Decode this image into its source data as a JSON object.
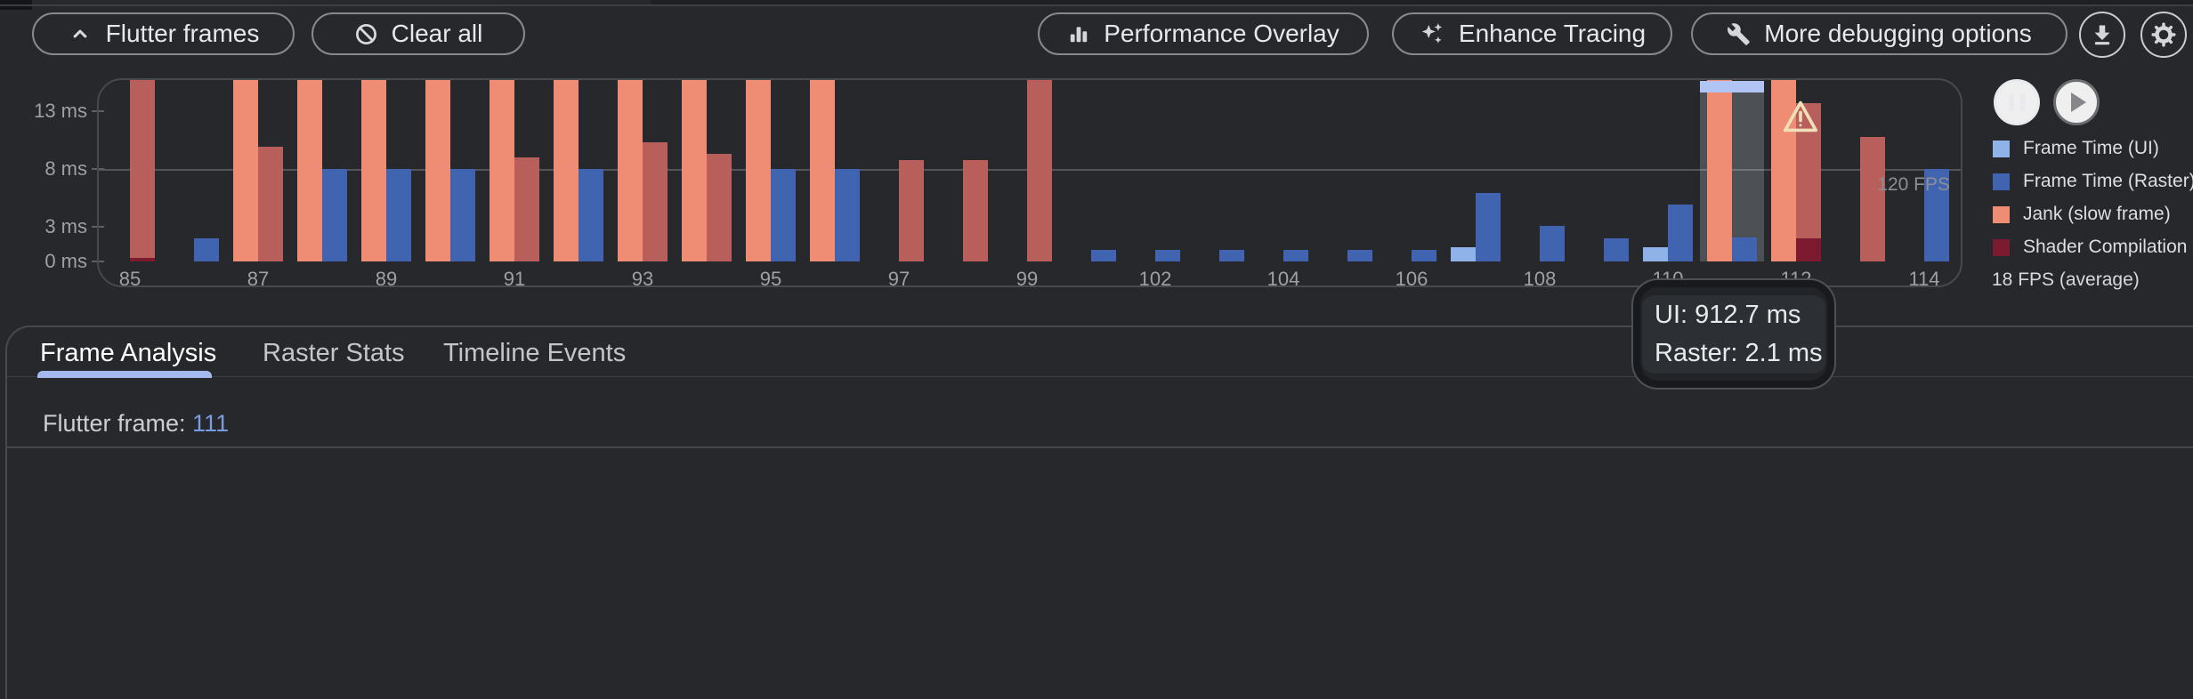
{
  "toolbar": {
    "flutter_frames_label": "Flutter frames",
    "clear_all_label": "Clear all",
    "performance_overlay_label": "Performance Overlay",
    "enhance_tracing_label": "Enhance Tracing",
    "more_debugging_label": "More debugging options"
  },
  "chart_data": {
    "type": "bar",
    "ylabel_ticks": [
      "0 ms",
      "3 ms",
      "8 ms",
      "13 ms"
    ],
    "y_tick_ms": [
      0,
      3,
      8,
      13
    ],
    "gridline_ms": 8,
    "fps_gridline_label": "120 FPS",
    "average_fps_label": "18 FPS (average)",
    "selected_frame": 111,
    "tooltip": {
      "line1": "UI: 912.7 ms",
      "line2": "Raster: 2.1 ms"
    },
    "colors": {
      "ui_normal": "#8fb3e8",
      "raster_normal": "#4164b1",
      "jank_ui": "#ee8c74",
      "jank_raster": "#b95f5b",
      "shader": "#7c1a30",
      "selection_cap": "#b1c5f4"
    },
    "legend": [
      {
        "label": "Frame Time (UI)",
        "color": "#8fb3e8"
      },
      {
        "label": "Frame Time (Raster)",
        "color": "#4164b1"
      },
      {
        "label": "Jank (slow frame)",
        "color": "#ee8c74"
      },
      {
        "label": "Shader Compilation",
        "color": "#7c1a30"
      }
    ],
    "note": "ui/raster values in ms; 16.5 = bar clipped at chart top (overflow)",
    "frames": [
      {
        "n": 85,
        "ui": null,
        "raster": 16.5,
        "raster_jank": true,
        "shader": 0.3,
        "labeled": true
      },
      {
        "n": 86,
        "ui": null,
        "raster": 2.0,
        "raster_jank": false
      },
      {
        "n": 87,
        "ui": 16.5,
        "ui_jank": true,
        "raster": 9.9,
        "raster_jank": true,
        "labeled": true
      },
      {
        "n": 88,
        "ui": 16.5,
        "ui_jank": true,
        "raster": 8.0,
        "raster_jank": false
      },
      {
        "n": 89,
        "ui": 16.5,
        "ui_jank": true,
        "raster": 8.0,
        "raster_jank": false,
        "labeled": true
      },
      {
        "n": 90,
        "ui": 16.5,
        "ui_jank": true,
        "raster": 8.0,
        "raster_jank": false
      },
      {
        "n": 91,
        "ui": 16.5,
        "ui_jank": true,
        "raster": 9.0,
        "raster_jank": true,
        "labeled": true
      },
      {
        "n": 92,
        "ui": 16.5,
        "ui_jank": true,
        "raster": 8.0,
        "raster_jank": false
      },
      {
        "n": 93,
        "ui": 16.5,
        "ui_jank": true,
        "raster": 10.3,
        "raster_jank": true,
        "labeled": true
      },
      {
        "n": 94,
        "ui": 16.5,
        "ui_jank": true,
        "raster": 9.3,
        "raster_jank": true
      },
      {
        "n": 95,
        "ui": 16.5,
        "ui_jank": true,
        "raster": 8.0,
        "raster_jank": false,
        "labeled": true
      },
      {
        "n": 96,
        "ui": 16.5,
        "ui_jank": true,
        "raster": 8.0,
        "raster_jank": false
      },
      {
        "n": 97,
        "ui": null,
        "raster": 8.8,
        "raster_jank": true,
        "labeled": true
      },
      {
        "n": 98,
        "ui": null,
        "raster": 8.8,
        "raster_jank": true
      },
      {
        "n": 99,
        "ui": null,
        "raster": 16.5,
        "raster_jank": true,
        "labeled": true
      },
      {
        "n": 100,
        "ui": null,
        "raster": 1.0,
        "raster_jank": false
      },
      {
        "n": 102,
        "ui": null,
        "raster": 1.0,
        "raster_jank": false,
        "labeled": true
      },
      {
        "n": 103,
        "ui": null,
        "raster": 1.0,
        "raster_jank": false
      },
      {
        "n": 104,
        "ui": null,
        "raster": 1.0,
        "raster_jank": false,
        "labeled": true
      },
      {
        "n": 105,
        "ui": null,
        "raster": 1.0,
        "raster_jank": false
      },
      {
        "n": 106,
        "ui": null,
        "raster": 1.0,
        "raster_jank": false,
        "labeled": true
      },
      {
        "n": 107,
        "ui": 1.2,
        "ui_jank": false,
        "raster": 5.9,
        "raster_jank": false
      },
      {
        "n": 108,
        "ui": null,
        "raster": 3.1,
        "raster_jank": false,
        "labeled": true
      },
      {
        "n": 109,
        "ui": null,
        "raster": 2.0,
        "raster_jank": false
      },
      {
        "n": 110,
        "ui": 1.2,
        "ui_jank": false,
        "raster": 4.9,
        "raster_jank": false,
        "labeled": true
      },
      {
        "n": 111,
        "ui": 16.5,
        "ui_jank": true,
        "raster": 2.1,
        "raster_jank": false,
        "selected": true
      },
      {
        "n": 112,
        "ui": 16.5,
        "ui_jank": true,
        "raster": 13.7,
        "raster_jank": true,
        "shader": 2.0,
        "warning": true,
        "labeled": true
      },
      {
        "n": 113,
        "ui": null,
        "raster": 10.8,
        "raster_jank": true
      },
      {
        "n": 114,
        "ui": null,
        "raster": 8.0,
        "raster_jank": false,
        "labeled": true
      }
    ]
  },
  "tabs": {
    "items": [
      "Frame Analysis",
      "Raster Stats",
      "Timeline Events"
    ],
    "selected": "Frame Analysis"
  },
  "content": {
    "frame_label": "Flutter frame: ",
    "frame_number": "111"
  }
}
